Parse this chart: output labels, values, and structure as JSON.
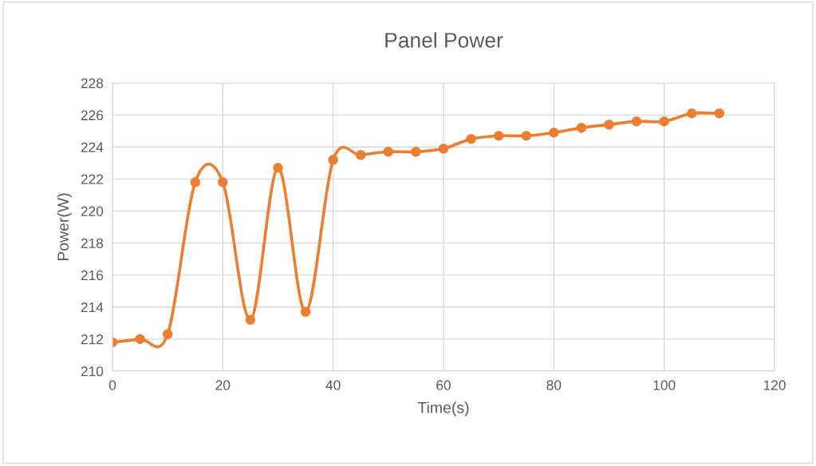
{
  "chart_data": {
    "type": "line",
    "title": "Panel Power",
    "xlabel": "Time(s)",
    "ylabel": "Power(W)",
    "x": [
      0,
      5,
      10,
      15,
      20,
      25,
      30,
      35,
      40,
      45,
      50,
      55,
      60,
      65,
      70,
      75,
      80,
      85,
      90,
      95,
      100,
      105,
      110
    ],
    "series": [
      {
        "color": "#ed7d31",
        "values": [
          211.8,
          212.0,
          212.3,
          221.8,
          221.8,
          213.2,
          222.7,
          213.7,
          223.2,
          223.5,
          223.7,
          223.7,
          223.9,
          224.5,
          224.7,
          224.7,
          224.9,
          225.2,
          225.4,
          225.6,
          225.6,
          226.1,
          226.1
        ]
      }
    ],
    "xlim": [
      0,
      120
    ],
    "xticks": [
      0,
      20,
      40,
      60,
      80,
      100,
      120
    ],
    "ylim": [
      210,
      228
    ],
    "yticks": [
      210,
      212,
      214,
      216,
      218,
      220,
      222,
      224,
      226,
      228
    ],
    "grid": true,
    "marker": "circle",
    "line_style": "solid",
    "legend": false
  }
}
